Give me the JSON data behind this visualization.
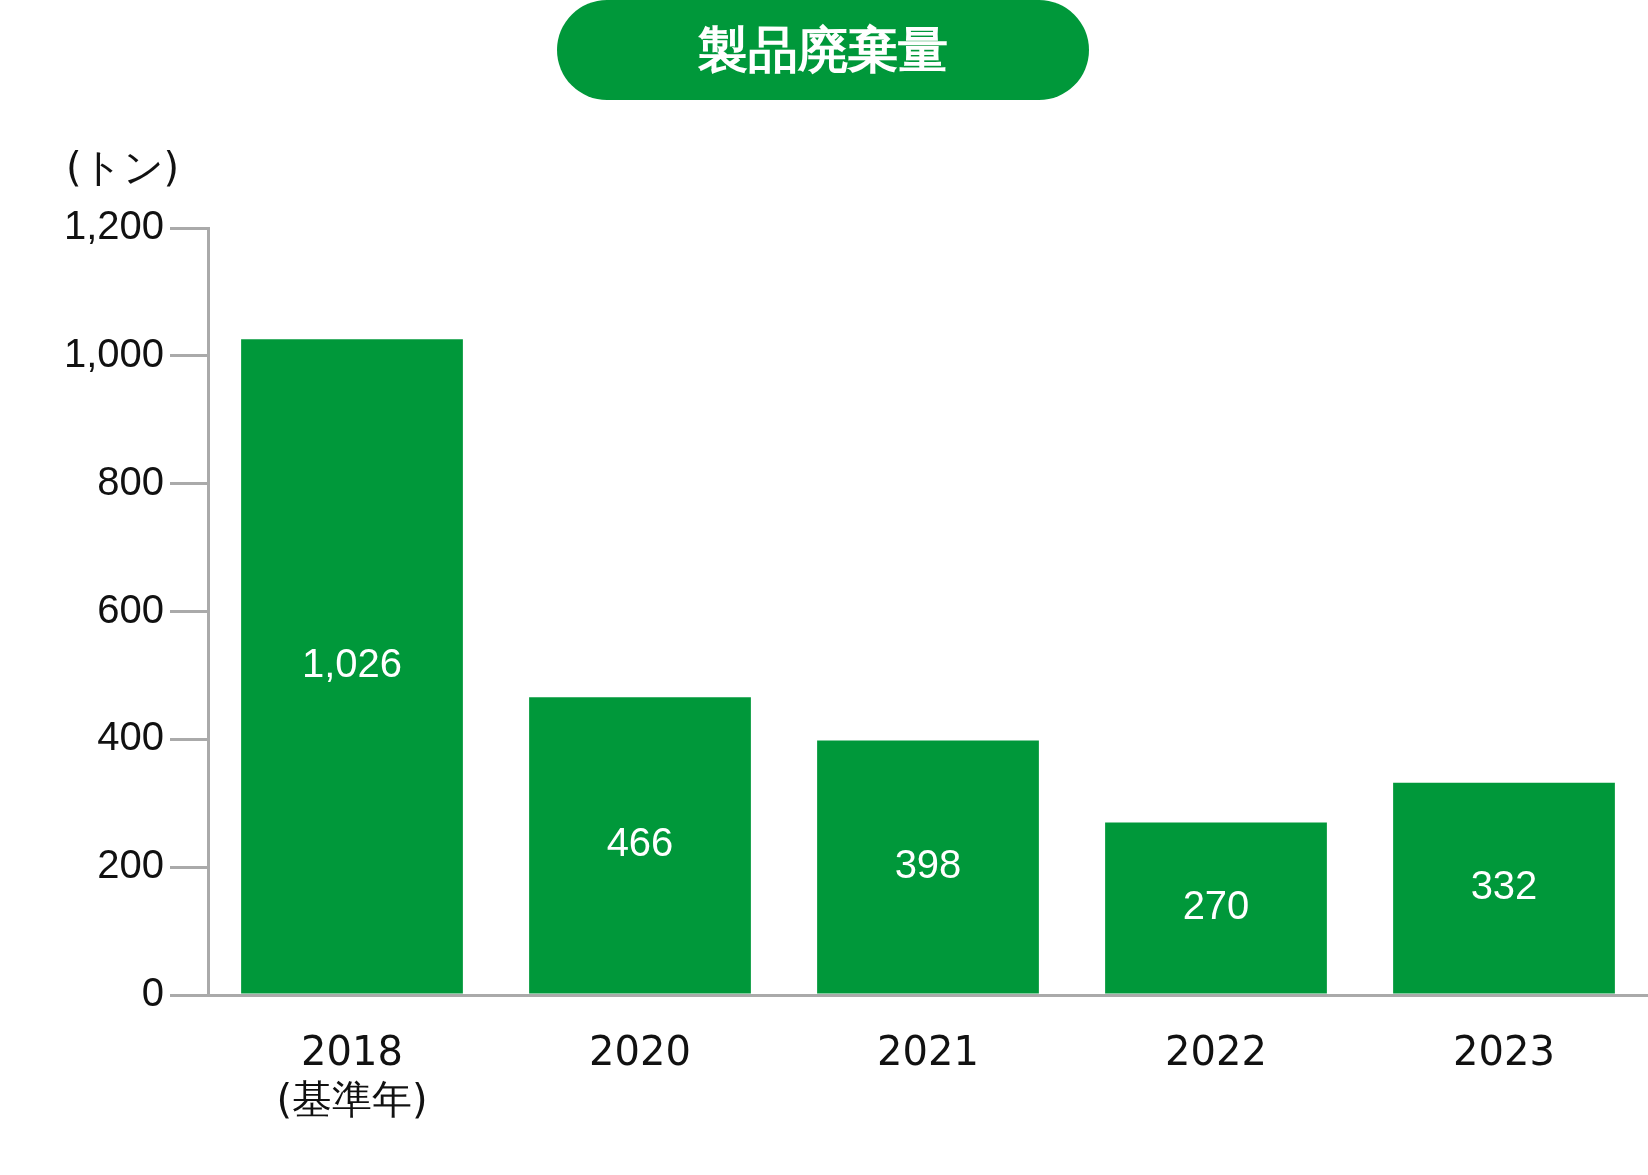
{
  "chart_data": {
    "type": "bar",
    "title": "製品廃棄量",
    "ylabel": "(トン)",
    "categories": [
      "2018\n(基準年)",
      "2020",
      "2021",
      "2022",
      "2023"
    ],
    "values": [
      1026,
      466,
      398,
      270,
      332
    ],
    "color": "#00983a",
    "ylim": [
      0,
      1200
    ],
    "yticks": [
      {
        "value": 0,
        "label": "0"
      },
      {
        "value": 200,
        "label": "200"
      },
      {
        "value": 400,
        "label": "400"
      },
      {
        "value": 600,
        "label": "600"
      },
      {
        "value": 800,
        "label": "800"
      },
      {
        "value": 1000,
        "label": "1,000"
      },
      {
        "value": 1200,
        "label": "1,200"
      }
    ],
    "value_labels": [
      "1,026",
      "466",
      "398",
      "270",
      "332"
    ],
    "grid": false,
    "legend": false
  }
}
